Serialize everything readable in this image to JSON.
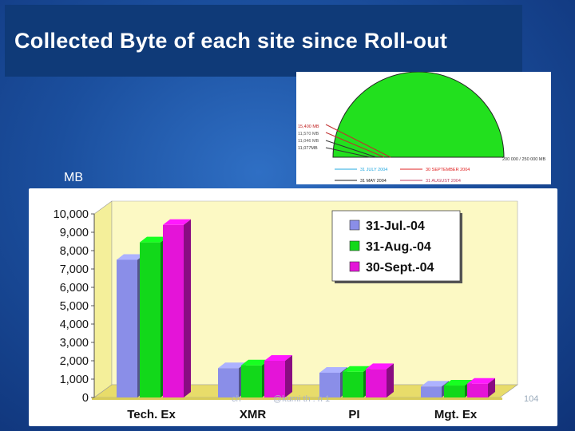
{
  "slide": {
    "title": "Collected Byte of each site since Roll-out",
    "unit_label": "MB",
    "page_number": "104",
    "footer_left": "ch",
    "footer_mid": "@kumi th . n 1"
  },
  "inset": {
    "labels_left": [
      "15,400 MB",
      "11,570 MB",
      "11,046 MB",
      "11,077MB"
    ],
    "label_right": "200 000 / 250 000 MB",
    "legend": [
      {
        "label": "31 JULY 2004",
        "color": "#22a8e0"
      },
      {
        "label": "30 SEPTEMBER 2004",
        "color": "#e02020"
      },
      {
        "label": "31 MAY 2004",
        "color": "#222222"
      },
      {
        "label": "31 AUGUST 2004",
        "color": "#c04060"
      }
    ],
    "fill_color": "#22e01e"
  },
  "chart_data": {
    "type": "bar",
    "categories": [
      "Tech. Ex",
      "XMR",
      "PI",
      "Mgt. Ex"
    ],
    "series": [
      {
        "name": "31-Jul.-04",
        "color": "#8a8ee8",
        "values": [
          7500,
          1600,
          1350,
          600
        ]
      },
      {
        "name": "31-Aug.-04",
        "color": "#12d81a",
        "values": [
          8450,
          1750,
          1400,
          650
        ]
      },
      {
        "name": "30-Sept.-04",
        "color": "#e414d8",
        "values": [
          9400,
          2000,
          1550,
          750
        ]
      }
    ],
    "ylim": [
      0,
      10000
    ],
    "yticks": [
      "0",
      "1,000",
      "2,000",
      "3,000",
      "4,000",
      "5,000",
      "6,000",
      "7,000",
      "8,000",
      "9,000",
      "10,000"
    ],
    "legend_position": "top-right",
    "grid": false
  }
}
